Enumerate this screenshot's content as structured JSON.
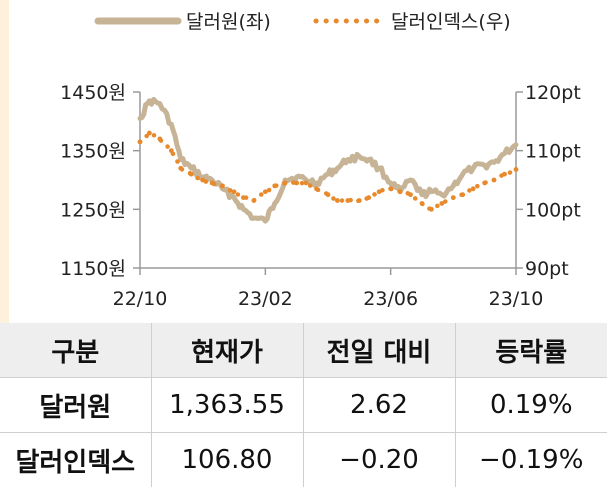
{
  "chart_data": {
    "type": "line",
    "legend": [
      {
        "name": "달러원(좌)",
        "style": "solid",
        "color": "#c7b497"
      },
      {
        "name": "달러인덱스(우)",
        "style": "dotted",
        "color": "#e8892c"
      }
    ],
    "x_tick_labels": [
      "22/10",
      "23/02",
      "23/06",
      "23/10"
    ],
    "y_left": {
      "range": [
        1150,
        1450
      ],
      "ticks": [
        1450,
        1350,
        1250,
        1150
      ],
      "tick_labels": [
        "1450원",
        "1350원",
        "1250원",
        "1150원"
      ]
    },
    "y_right": {
      "range": [
        90,
        120
      ],
      "ticks": [
        120,
        110,
        100,
        90
      ],
      "tick_labels": [
        "120pt",
        "110pt",
        "100pt",
        "90pt"
      ]
    },
    "legend_position": "top",
    "grid": false,
    "series": [
      {
        "name": "달러원(좌)",
        "axis": "left",
        "x": [
          "22/10/01",
          "22/10/10",
          "22/10/20",
          "22/11/01",
          "22/11/10",
          "22/11/20",
          "22/12/01",
          "22/12/10",
          "22/12/20",
          "23/01/01",
          "23/01/10",
          "23/01/20",
          "23/02/01",
          "23/02/10",
          "23/02/20",
          "23/03/01",
          "23/03/10",
          "23/03/20",
          "23/04/01",
          "23/04/10",
          "23/04/20",
          "23/05/01",
          "23/05/10",
          "23/05/20",
          "23/06/01",
          "23/06/10",
          "23/06/20",
          "23/07/01",
          "23/07/10",
          "23/07/20",
          "23/08/01",
          "23/08/10",
          "23/08/20",
          "23/09/01",
          "23/09/10",
          "23/09/20",
          "23/10/01"
        ],
        "values": [
          1405,
          1435,
          1430,
          1395,
          1335,
          1320,
          1305,
          1300,
          1285,
          1270,
          1250,
          1235,
          1230,
          1260,
          1300,
          1305,
          1300,
          1295,
          1310,
          1320,
          1335,
          1340,
          1335,
          1320,
          1295,
          1280,
          1300,
          1275,
          1280,
          1275,
          1290,
          1310,
          1320,
          1325,
          1330,
          1345,
          1360
        ]
      },
      {
        "name": "달러인덱스(우)",
        "axis": "right",
        "x": [
          "22/10/01",
          "22/10/10",
          "22/10/20",
          "22/11/01",
          "22/11/10",
          "22/11/20",
          "22/12/01",
          "22/12/10",
          "22/12/20",
          "23/01/01",
          "23/01/10",
          "23/01/20",
          "23/02/01",
          "23/02/10",
          "23/02/20",
          "23/03/01",
          "23/03/10",
          "23/03/20",
          "23/04/01",
          "23/04/10",
          "23/04/20",
          "23/05/01",
          "23/05/10",
          "23/05/20",
          "23/06/01",
          "23/06/10",
          "23/06/20",
          "23/07/01",
          "23/07/10",
          "23/07/20",
          "23/08/01",
          "23/08/10",
          "23/08/20",
          "23/09/01",
          "23/09/10",
          "23/09/20",
          "23/10/01"
        ],
        "values": [
          111.5,
          113,
          112,
          110,
          107,
          106,
          105,
          104.5,
          104,
          103,
          102,
          101.5,
          103,
          104,
          104.5,
          104.5,
          104.5,
          103.5,
          102.5,
          101.5,
          101.5,
          101.5,
          102,
          103,
          103.5,
          103,
          102.5,
          101,
          100,
          101,
          102,
          102.5,
          103.5,
          104.5,
          105,
          106,
          106.8
        ]
      }
    ]
  },
  "table": {
    "headers": [
      "구분",
      "현재가",
      "전일 대비",
      "등락률"
    ],
    "rows": [
      [
        "달러원",
        "1,363.55",
        "2.62",
        "0.19%"
      ],
      [
        "달러인덱스",
        "106.80",
        "−0.20",
        "−0.19%"
      ]
    ]
  }
}
